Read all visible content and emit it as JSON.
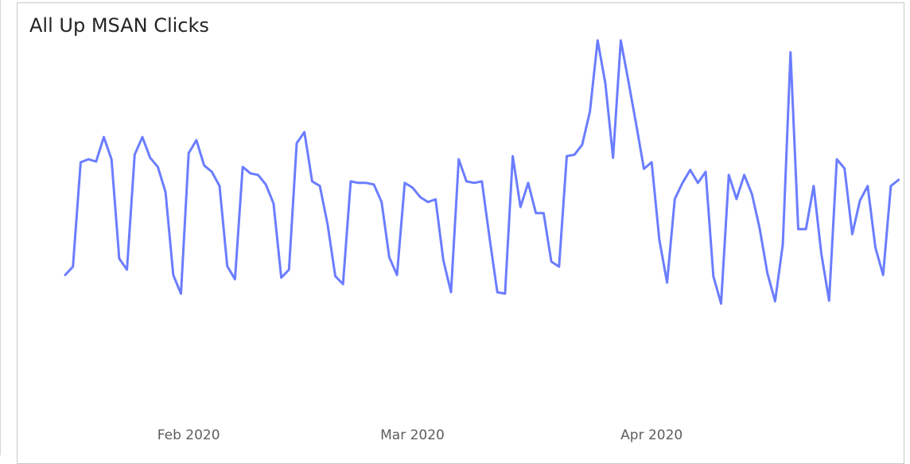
{
  "chart_data": {
    "type": "line",
    "title": "All Up MSAN Clicks",
    "xlabel": "",
    "ylabel": "",
    "x_start": "2020-01-16",
    "x_ticks": [
      {
        "label": "Feb 2020",
        "date": "2020-02-01"
      },
      {
        "label": "Mar 2020",
        "date": "2020-03-01"
      },
      {
        "label": "Apr 2020",
        "date": "2020-04-01"
      }
    ],
    "ylim": [
      0,
      100
    ],
    "grid": false,
    "legend": "none",
    "series": [
      {
        "color": "#6b7dff",
        "values": [
          35.1,
          37.3,
          64.6,
          65.4,
          64.8,
          71.2,
          65.4,
          39.4,
          36.5,
          66.6,
          71.2,
          65.8,
          63.4,
          56.8,
          35.1,
          30.2,
          67.0,
          70.4,
          63.8,
          62.1,
          58.4,
          37.4,
          34.0,
          63.4,
          61.7,
          61.3,
          58.8,
          53.8,
          34.4,
          36.5,
          69.6,
          72.5,
          59.6,
          58.4,
          48.4,
          34.8,
          32.7,
          59.6,
          59.2,
          59.2,
          58.8,
          54.2,
          39.7,
          35.1,
          59.2,
          58.0,
          55.5,
          54.2,
          54.9,
          39.0,
          30.6,
          65.4,
          59.6,
          59.2,
          59.6,
          44.7,
          30.6,
          30.2,
          66.2,
          52.9,
          59.2,
          51.3,
          51.3,
          38.6,
          37.3,
          66.2,
          66.6,
          69.2,
          77.9,
          96.5,
          85.3,
          65.8,
          96.5,
          85.7,
          74.5,
          62.9,
          64.6,
          44.3,
          33.1,
          55.0,
          59.2,
          62.6,
          59.2,
          62.1,
          34.8,
          27.6,
          61.3,
          55.0,
          61.3,
          56.3,
          47.3,
          35.6,
          28.2,
          43.1,
          93.4,
          47.1,
          47.1,
          58.4,
          40.6,
          28.4,
          65.4,
          63.0,
          45.8,
          54.6,
          58.4,
          42.3,
          35.1,
          58.4,
          60.0
        ]
      }
    ],
    "x_axis_labels": [
      "Feb 2020",
      "Mar 2020",
      "Apr 2020"
    ]
  }
}
